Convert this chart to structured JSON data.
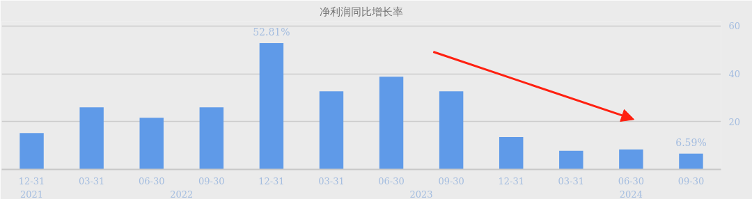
{
  "chart_data": {
    "type": "bar",
    "title": "净利润同比增长率",
    "categories": [
      "12-31",
      "03-31",
      "06-30",
      "09-30",
      "12-31",
      "03-31",
      "06-30",
      "09-30",
      "12-31",
      "03-31",
      "06-30",
      "09-30"
    ],
    "values": [
      15.2,
      26,
      21.6,
      26,
      52.81,
      32.7,
      38.8,
      32.7,
      13.5,
      7.8,
      8.4,
      6.59
    ],
    "value_labels": [
      null,
      null,
      null,
      null,
      "52.81%",
      null,
      null,
      null,
      null,
      null,
      null,
      "6.59%"
    ],
    "color": "#5f9ae8",
    "ylim": [
      0,
      62
    ],
    "yticks": [
      {
        "value": 0,
        "label": null
      },
      20,
      40,
      60
    ],
    "grid": "y",
    "annotations": [
      "2021",
      "2022",
      "2023",
      "2024"
    ]
  }
}
